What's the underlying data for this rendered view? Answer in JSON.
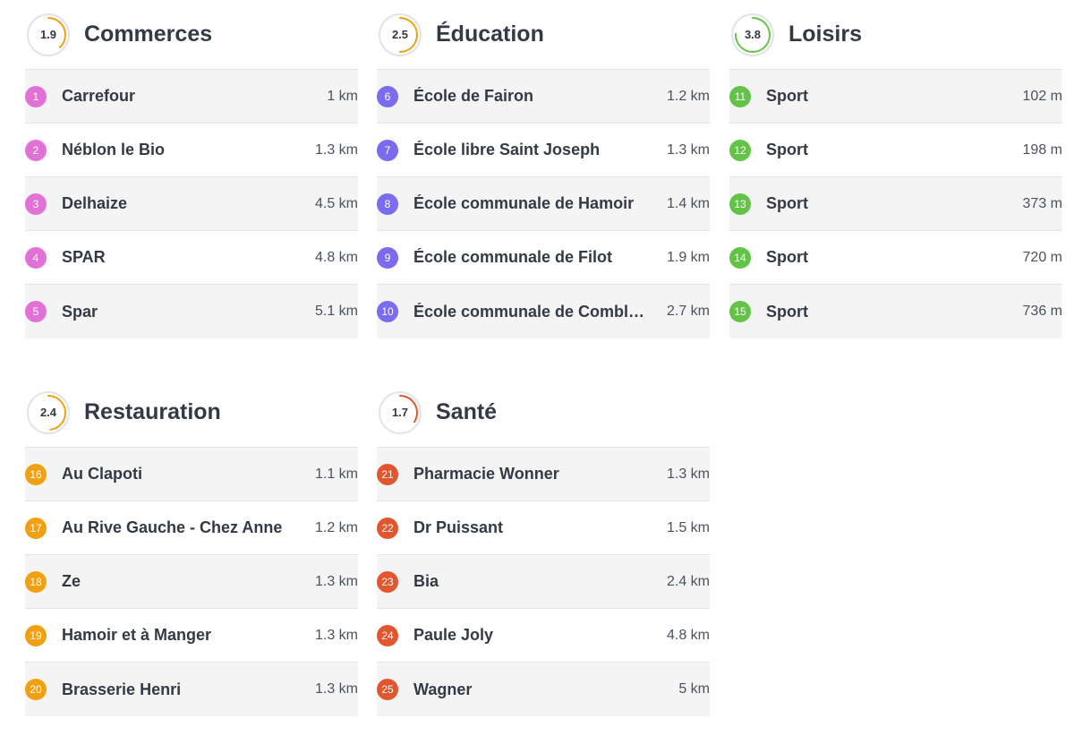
{
  "colors": {
    "commerces": "#e271d6",
    "education": "#7b6bef",
    "loisirs": "#62c346",
    "restauration": "#f0a012",
    "sante": "#e2562f",
    "score_arc_orange": "#f0a012",
    "score_arc_green": "#62c346",
    "score_ring": "#e2e4e7"
  },
  "categories": [
    {
      "title": "Commerces",
      "score": "1.9",
      "items": [
        {
          "num": "1",
          "name": "Carrefour",
          "dist": "1 km"
        },
        {
          "num": "2",
          "name": "Néblon le Bio",
          "dist": "1.3 km"
        },
        {
          "num": "3",
          "name": "Delhaize",
          "dist": "4.5 km"
        },
        {
          "num": "4",
          "name": "SPAR",
          "dist": "4.8 km"
        },
        {
          "num": "5",
          "name": "Spar",
          "dist": "5.1 km"
        }
      ]
    },
    {
      "title": "Éducation",
      "score": "2.5",
      "items": [
        {
          "num": "6",
          "name": "École de Fairon",
          "dist": "1.2 km"
        },
        {
          "num": "7",
          "name": "École libre Saint Joseph",
          "dist": "1.3 km"
        },
        {
          "num": "8",
          "name": "École communale de Hamoir",
          "dist": "1.4 km"
        },
        {
          "num": "9",
          "name": "École communale de Filot",
          "dist": "1.9 km"
        },
        {
          "num": "10",
          "name": "École communale de Combl…",
          "dist": "2.7 km"
        }
      ]
    },
    {
      "title": "Loisirs",
      "score": "3.8",
      "items": [
        {
          "num": "11",
          "name": "Sport",
          "dist": "102 m"
        },
        {
          "num": "12",
          "name": "Sport",
          "dist": "198 m"
        },
        {
          "num": "13",
          "name": "Sport",
          "dist": "373 m"
        },
        {
          "num": "14",
          "name": "Sport",
          "dist": "720 m"
        },
        {
          "num": "15",
          "name": "Sport",
          "dist": "736 m"
        }
      ]
    },
    {
      "title": "Restauration",
      "score": "2.4",
      "items": [
        {
          "num": "16",
          "name": "Au Clapoti",
          "dist": "1.1 km"
        },
        {
          "num": "17",
          "name": "Au Rive Gauche - Chez Anne",
          "dist": "1.2 km"
        },
        {
          "num": "18",
          "name": "Ze",
          "dist": "1.3 km"
        },
        {
          "num": "19",
          "name": "Hamoir et à Manger",
          "dist": "1.3 km"
        },
        {
          "num": "20",
          "name": "Brasserie Henri",
          "dist": "1.3 km"
        }
      ]
    },
    {
      "title": "Santé",
      "score": "1.7",
      "items": [
        {
          "num": "21",
          "name": "Pharmacie Wonner",
          "dist": "1.3 km"
        },
        {
          "num": "22",
          "name": "Dr Puissant",
          "dist": "1.5 km"
        },
        {
          "num": "23",
          "name": "Bia",
          "dist": "2.4 km"
        },
        {
          "num": "24",
          "name": "Paule Joly",
          "dist": "4.8 km"
        },
        {
          "num": "25",
          "name": "Wagner",
          "dist": "5 km"
        }
      ]
    }
  ]
}
